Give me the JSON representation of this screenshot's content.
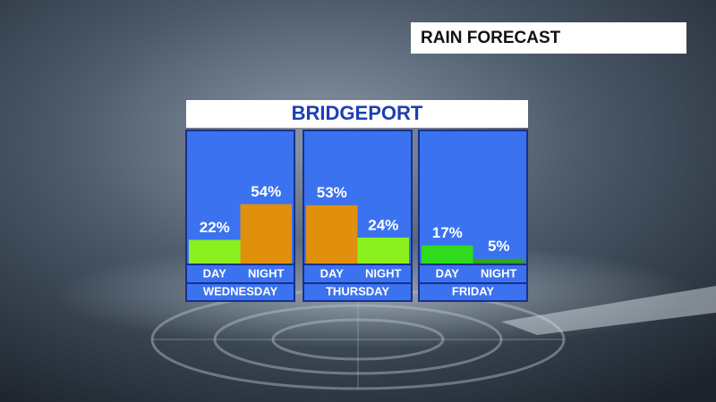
{
  "chart_data": {
    "type": "bar",
    "banner": "RAIN FORECAST",
    "title": "BRIDGEPORT",
    "panels": [
      {
        "name": "WEDNESDAY",
        "categories": [
          "DAY",
          "NIGHT"
        ],
        "values": [
          22,
          54
        ],
        "value_labels": [
          "22%",
          "54%"
        ],
        "colors": [
          "#8cf01e",
          "#e0900c"
        ]
      },
      {
        "name": "THURSDAY",
        "categories": [
          "DAY",
          "NIGHT"
        ],
        "values": [
          53,
          24
        ],
        "value_labels": [
          "53%",
          "24%"
        ],
        "colors": [
          "#e0900c",
          "#8cf01e"
        ]
      },
      {
        "name": "FRIDAY",
        "categories": [
          "DAY",
          "NIGHT"
        ],
        "values": [
          17,
          5
        ],
        "value_labels": [
          "17%",
          "5%"
        ],
        "colors": [
          "#2fdc1c",
          "#2ea51e"
        ]
      }
    ]
  }
}
